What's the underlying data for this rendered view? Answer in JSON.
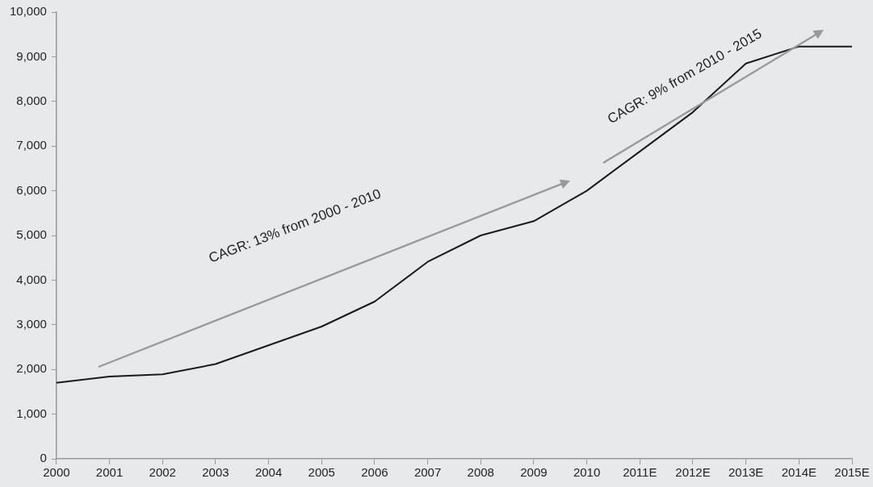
{
  "chart_data": {
    "type": "line",
    "categories": [
      "2000",
      "2001",
      "2002",
      "2003",
      "2004",
      "2005",
      "2006",
      "2007",
      "2008",
      "2009",
      "2010",
      "2011E",
      "2012E",
      "2013E",
      "2014E",
      "2015E"
    ],
    "series": [
      {
        "color": "#1a1a1a",
        "values": [
          1700,
          1840,
          1890,
          2120,
          2540,
          2960,
          3520,
          4410,
          5000,
          5320,
          6000,
          6880,
          7760,
          8850,
          9230,
          9230
        ]
      }
    ],
    "ylim": [
      0,
      10000
    ],
    "yticks": [
      {
        "value": 0,
        "label": "0"
      },
      {
        "value": 1000,
        "label": "1,000"
      },
      {
        "value": 2000,
        "label": "2,000"
      },
      {
        "value": 3000,
        "label": "3,000"
      },
      {
        "value": 4000,
        "label": "4,000"
      },
      {
        "value": 5000,
        "label": "5,000"
      },
      {
        "value": 6000,
        "label": "6,000"
      },
      {
        "value": 7000,
        "label": "7,000"
      },
      {
        "value": 8000,
        "label": "8,000"
      },
      {
        "value": 9000,
        "label": "9,000"
      },
      {
        "value": 10000,
        "label": "10,000"
      }
    ],
    "annotations": [
      "CAGR: 13% from 2000 - 2010",
      "CAGR: 9% from 2010 - 2015"
    ],
    "grid": false,
    "legend": false,
    "marker": "none",
    "line_style": "solid"
  }
}
